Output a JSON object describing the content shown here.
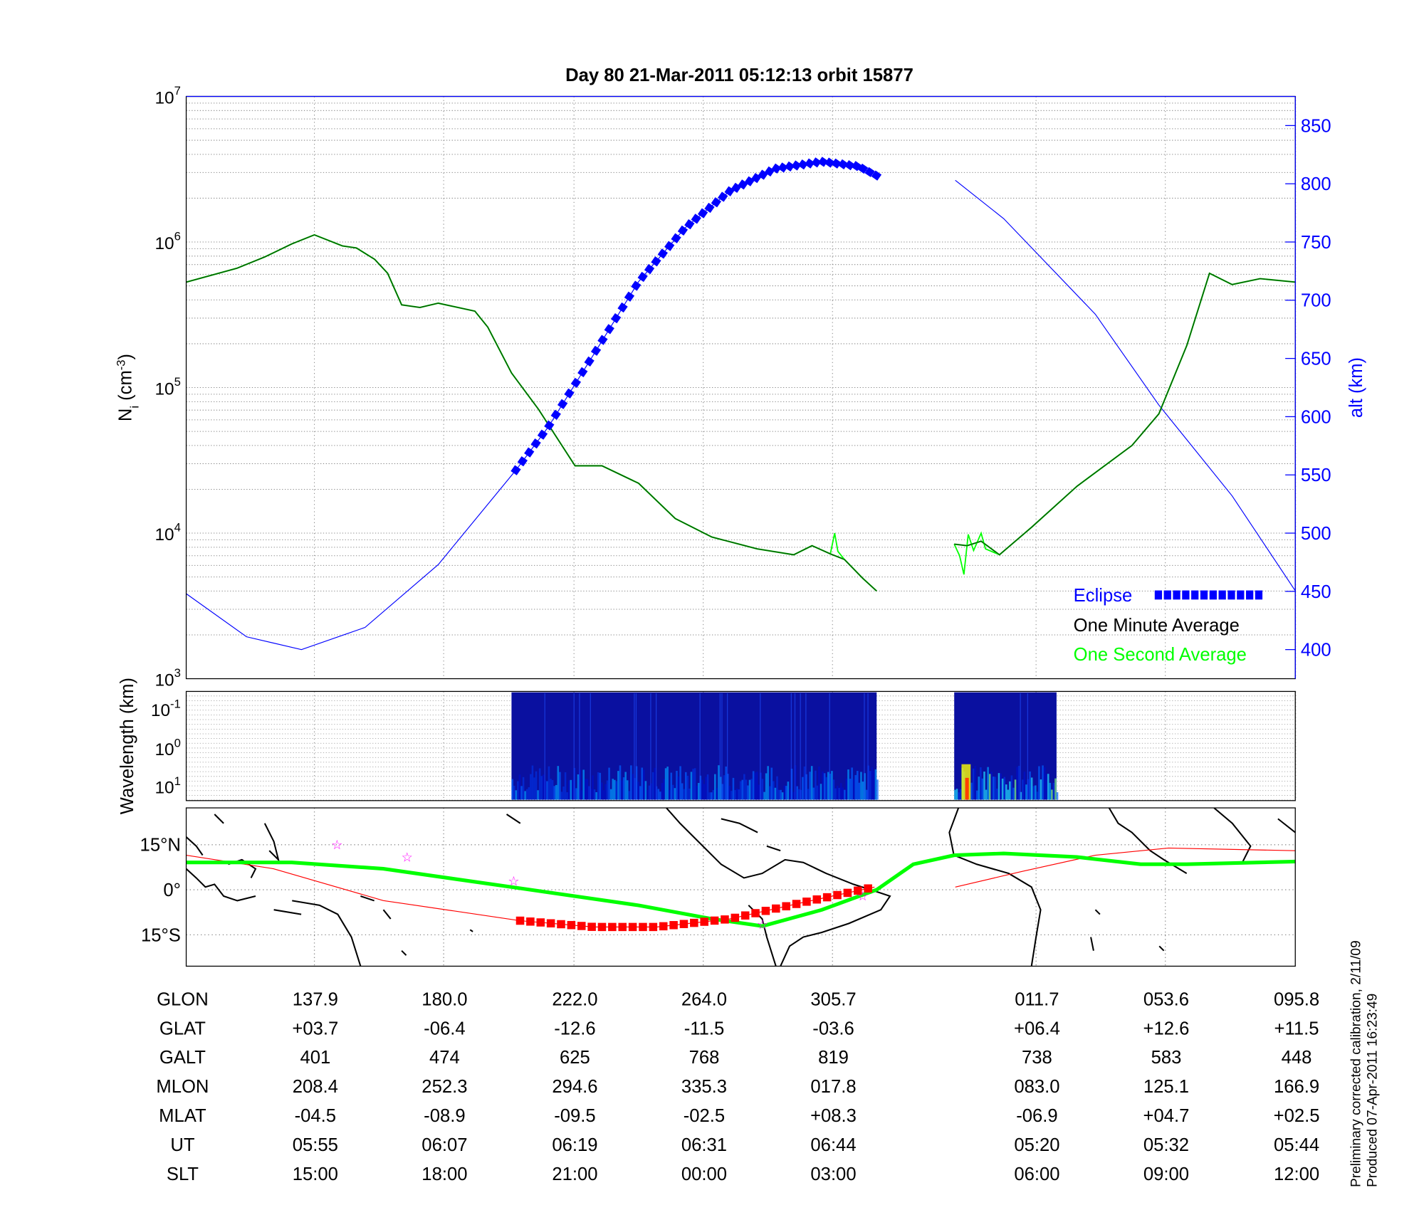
{
  "title": "Day 80  21-Mar-2011 05:12:13   orbit 15877",
  "side_note": [
    "Preliminary corrected calibration, 2/11/09",
    "Produced 07-Apr-2011 16:23:49"
  ],
  "colors": {
    "eclipse": "#0000ff",
    "one_minute": "#005000",
    "one_second": "#00ff00",
    "altitude": "#0000ff",
    "track": "#ff0000",
    "stars": "#ff00ff"
  },
  "chart_data": [
    {
      "type": "line",
      "name": "ion-density",
      "ylabel": "N_i (cm^-3)",
      "y2label": "alt (km)",
      "yscale": "log",
      "ylim": [
        1000,
        10000000
      ],
      "y2lim": [
        375,
        875
      ],
      "xunit": "minutes from plot start",
      "xlim": [
        0,
        103
      ],
      "ytick_labels": [
        {
          "base": "10",
          "exp": "3"
        },
        {
          "base": "10",
          "exp": "4"
        },
        {
          "base": "10",
          "exp": "5"
        },
        {
          "base": "10",
          "exp": "6"
        },
        {
          "base": "10",
          "exp": "7"
        }
      ],
      "y2ticks": [
        "400",
        "450",
        "500",
        "550",
        "600",
        "650",
        "700",
        "750",
        "800",
        "850"
      ],
      "legend": {
        "placement": "bottom-right",
        "entries": [
          "Eclipse",
          "One Minute Average",
          "One Second Average"
        ]
      },
      "grid": true,
      "eclipse_range": [
        30.6,
        64.1
      ],
      "series": [
        {
          "name": "One Minute Average",
          "segments": [
            [
              [
                0,
                530000
              ],
              [
                4.7,
                660000
              ],
              [
                7.3,
                790000
              ],
              [
                9.8,
                970000
              ],
              [
                11.9,
                1120000
              ],
              [
                14.5,
                940000
              ],
              [
                15.8,
                910000
              ],
              [
                17.5,
                760000
              ],
              [
                18.7,
                610000
              ],
              [
                20,
                370000
              ],
              [
                21.7,
                355000
              ],
              [
                23.4,
                380000
              ],
              [
                26.8,
                335000
              ],
              [
                28,
                260000
              ],
              [
                30.2,
                126000
              ],
              [
                32.7,
                71000
              ],
              [
                36.1,
                29000
              ],
              [
                38.6,
                29000
              ],
              [
                42,
                22000
              ],
              [
                45.4,
                12600
              ],
              [
                48.8,
                9400
              ],
              [
                53,
                7800
              ],
              [
                56.4,
                7100
              ],
              [
                58.1,
                8200
              ],
              [
                59.8,
                7200
              ],
              [
                61.1,
                6600
              ],
              [
                62.8,
                4900
              ],
              [
                64.1,
                4000
              ]
            ],
            [
              [
                71.3,
                8400
              ],
              [
                72.5,
                8200
              ],
              [
                73.8,
                8800
              ],
              [
                75.5,
                7100
              ],
              [
                78.5,
                11000
              ],
              [
                82.7,
                21000
              ],
              [
                87.8,
                40000
              ],
              [
                90.3,
                66000
              ],
              [
                92.9,
                195000
              ],
              [
                95,
                610000
              ],
              [
                97.1,
                510000
              ],
              [
                99.7,
                560000
              ],
              [
                103,
                530000
              ]
            ]
          ]
        },
        {
          "name": "One Second Average",
          "segments": [
            [
              [
                59.8,
                7200
              ],
              [
                60.2,
                10000
              ],
              [
                60.5,
                7500
              ],
              [
                61.1,
                6600
              ]
            ],
            [
              [
                71.3,
                8400
              ],
              [
                71.8,
                7000
              ],
              [
                72.2,
                5200
              ],
              [
                72.6,
                9800
              ],
              [
                73.1,
                7600
              ],
              [
                73.8,
                10000
              ],
              [
                74.2,
                7800
              ],
              [
                75.5,
                7100
              ]
            ]
          ]
        },
        {
          "name": "Altitude",
          "axis": "right",
          "segments": [
            [
              [
                0,
                448
              ],
              [
                5.6,
                411
              ],
              [
                10.7,
                400
              ],
              [
                16.6,
                419
              ],
              [
                23.4,
                473
              ],
              [
                30.6,
                554
              ],
              [
                33.6,
                591
              ],
              [
                37.8,
                653
              ],
              [
                42,
                716
              ],
              [
                46.3,
                762
              ],
              [
                50.5,
                794
              ],
              [
                54.7,
                813
              ],
              [
                59,
                819
              ],
              [
                62.4,
                815
              ],
              [
                64.1,
                807
              ]
            ],
            [
              [
                71.4,
                803
              ],
              [
                75.9,
                770
              ],
              [
                84.4,
                688
              ],
              [
                90.3,
                610
              ],
              [
                97.1,
                532
              ],
              [
                103,
                450
              ]
            ]
          ]
        }
      ]
    },
    {
      "type": "heatmap",
      "name": "spectrogram",
      "ylabel": "Wavelength (km)",
      "ytick_labels": [
        {
          "base": "10",
          "exp": "-1"
        },
        {
          "base": "10",
          "exp": "0"
        },
        {
          "base": "10",
          "exp": "1"
        }
      ],
      "data_ranges": [
        [
          30.2,
          64.1
        ],
        [
          71.3,
          80.8
        ]
      ]
    },
    {
      "type": "line",
      "name": "ground-track-map",
      "ylim": [
        -25,
        27
      ],
      "ytick_labels": [
        "15°N",
        "0°",
        "15°S"
      ],
      "series": [
        {
          "name": "Magnetic equator",
          "points": [
            [
              0,
              9.1
            ],
            [
              9.8,
              9.1
            ],
            [
              18.3,
              7
            ],
            [
              30.2,
              0.9
            ],
            [
              42,
              -5.2
            ],
            [
              48.8,
              -9.7
            ],
            [
              53.5,
              -12.1
            ],
            [
              59,
              -6.7
            ],
            [
              64.1,
              0
            ],
            [
              67.5,
              8.5
            ],
            [
              71.3,
              11.5
            ],
            [
              75.9,
              12.1
            ],
            [
              82.7,
              10.9
            ],
            [
              88.6,
              8.5
            ],
            [
              92.9,
              8.5
            ],
            [
              103,
              9.4
            ]
          ]
        },
        {
          "name": "Orbit track",
          "segments": [
            [
              [
                0,
                11.5
              ],
              [
                8.1,
                7
              ],
              [
                18.3,
                -3.6
              ],
              [
                31,
                -10.3
              ],
              [
                37.8,
                -12.4
              ],
              [
                43.7,
                -12.4
              ],
              [
                50.5,
                -9.7
              ],
              [
                57.3,
                -4.2
              ],
              [
                63.9,
                0.9
              ]
            ],
            [
              [
                71.4,
                0.9
              ],
              [
                77.6,
                6.1
              ],
              [
                84.4,
                11.5
              ],
              [
                91.2,
                13.9
              ],
              [
                103,
                13
              ]
            ]
          ]
        },
        {
          "name": "Stations",
          "points": [
            [
              14,
              15
            ],
            [
              20.5,
              10.9
            ],
            [
              30.4,
              3
            ],
            [
              53.5,
              -11.5
            ],
            [
              62.8,
              -2
            ]
          ]
        }
      ]
    }
  ],
  "table": {
    "columns_minutes": [
      11.9,
      23.9,
      36.0,
      48.0,
      60.0,
      78.9,
      90.9,
      103
    ],
    "rows": [
      {
        "label": "GLON",
        "values": [
          "137.9",
          "180.0",
          "222.0",
          "264.0",
          "305.7",
          "011.7",
          "053.6",
          "095.8"
        ]
      },
      {
        "label": "GLAT",
        "values": [
          "+03.7",
          "-06.4",
          "-12.6",
          "-11.5",
          "-03.6",
          "+06.4",
          "+12.6",
          "+11.5"
        ]
      },
      {
        "label": "GALT",
        "values": [
          "401",
          "474",
          "625",
          "768",
          "819",
          "738",
          "583",
          "448"
        ]
      },
      {
        "label": "MLON",
        "values": [
          "208.4",
          "252.3",
          "294.6",
          "335.3",
          "017.8",
          "083.0",
          "125.1",
          "166.9"
        ]
      },
      {
        "label": "MLAT",
        "values": [
          "-04.5",
          "-08.9",
          "-09.5",
          "-02.5",
          "+08.3",
          "-06.9",
          "+04.7",
          "+02.5"
        ]
      },
      {
        "label": "UT",
        "values": [
          "05:55",
          "06:07",
          "06:19",
          "06:31",
          "06:44",
          "05:20",
          "05:32",
          "05:44"
        ]
      },
      {
        "label": "SLT",
        "values": [
          "15:00",
          "18:00",
          "21:00",
          "00:00",
          "03:00",
          "06:00",
          "09:00",
          "12:00"
        ]
      }
    ]
  }
}
